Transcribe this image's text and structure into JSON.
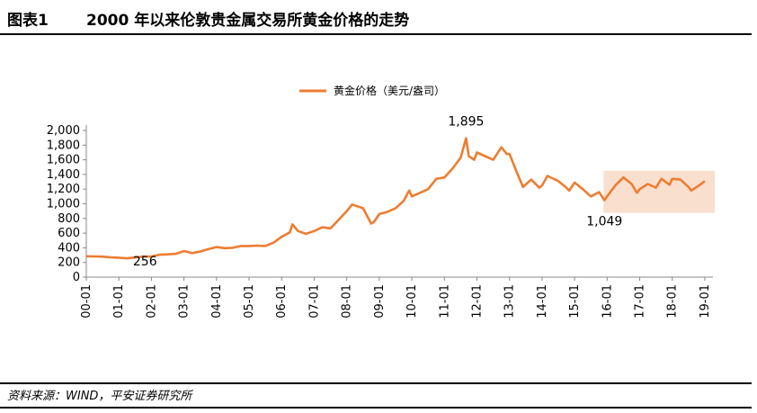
{
  "header": {
    "figure_label": "图表1",
    "title": "2000 年以来伦敦贵金属交易所黄金价格的走势"
  },
  "source": "资料来源：WIND，平安证券研究所",
  "chart_data": {
    "type": "line",
    "title": "2000 年以来伦敦贵金属交易所黄金价格的走势",
    "series": [
      {
        "name": "黄金价格（美元/盎司）",
        "color": "#ED7D31",
        "points": [
          [
            "2000-01",
            285
          ],
          [
            "2000-04",
            282
          ],
          [
            "2000-07",
            280
          ],
          [
            "2000-10",
            270
          ],
          [
            "2001-01",
            265
          ],
          [
            "2001-04",
            256
          ],
          [
            "2001-07",
            268
          ],
          [
            "2001-10",
            280
          ],
          [
            "2002-01",
            282
          ],
          [
            "2002-04",
            305
          ],
          [
            "2002-07",
            310
          ],
          [
            "2002-10",
            318
          ],
          [
            "2003-01",
            356
          ],
          [
            "2003-04",
            328
          ],
          [
            "2003-07",
            350
          ],
          [
            "2003-10",
            382
          ],
          [
            "2004-01",
            410
          ],
          [
            "2004-04",
            395
          ],
          [
            "2004-07",
            400
          ],
          [
            "2004-10",
            425
          ],
          [
            "2005-01",
            424
          ],
          [
            "2005-04",
            430
          ],
          [
            "2005-07",
            425
          ],
          [
            "2005-10",
            470
          ],
          [
            "2006-01",
            550
          ],
          [
            "2006-04",
            610
          ],
          [
            "2006-05",
            720
          ],
          [
            "2006-07",
            630
          ],
          [
            "2006-10",
            590
          ],
          [
            "2007-01",
            630
          ],
          [
            "2007-04",
            680
          ],
          [
            "2007-07",
            665
          ],
          [
            "2007-10",
            780
          ],
          [
            "2008-01",
            900
          ],
          [
            "2008-03",
            990
          ],
          [
            "2008-07",
            940
          ],
          [
            "2008-10",
            730
          ],
          [
            "2008-11",
            750
          ],
          [
            "2009-01",
            860
          ],
          [
            "2009-04",
            890
          ],
          [
            "2009-07",
            940
          ],
          [
            "2009-10",
            1040
          ],
          [
            "2009-12",
            1180
          ],
          [
            "2010-01",
            1100
          ],
          [
            "2010-04",
            1150
          ],
          [
            "2010-07",
            1200
          ],
          [
            "2010-10",
            1340
          ],
          [
            "2011-01",
            1360
          ],
          [
            "2011-04",
            1480
          ],
          [
            "2011-07",
            1630
          ],
          [
            "2011-09",
            1895
          ],
          [
            "2011-10",
            1650
          ],
          [
            "2011-12",
            1600
          ],
          [
            "2012-01",
            1700
          ],
          [
            "2012-04",
            1650
          ],
          [
            "2012-07",
            1600
          ],
          [
            "2012-10",
            1770
          ],
          [
            "2012-12",
            1680
          ],
          [
            "2013-01",
            1680
          ],
          [
            "2013-04",
            1400
          ],
          [
            "2013-06",
            1230
          ],
          [
            "2013-09",
            1330
          ],
          [
            "2013-12",
            1220
          ],
          [
            "2014-01",
            1250
          ],
          [
            "2014-03",
            1380
          ],
          [
            "2014-07",
            1310
          ],
          [
            "2014-10",
            1220
          ],
          [
            "2014-11",
            1180
          ],
          [
            "2015-01",
            1290
          ],
          [
            "2015-04",
            1200
          ],
          [
            "2015-07",
            1100
          ],
          [
            "2015-10",
            1160
          ],
          [
            "2015-12",
            1049
          ],
          [
            "2016-01",
            1100
          ],
          [
            "2016-04",
            1250
          ],
          [
            "2016-07",
            1360
          ],
          [
            "2016-10",
            1270
          ],
          [
            "2016-12",
            1150
          ],
          [
            "2017-01",
            1200
          ],
          [
            "2017-04",
            1270
          ],
          [
            "2017-07",
            1220
          ],
          [
            "2017-09",
            1340
          ],
          [
            "2017-12",
            1260
          ],
          [
            "2018-01",
            1340
          ],
          [
            "2018-04",
            1330
          ],
          [
            "2018-07",
            1230
          ],
          [
            "2018-08",
            1180
          ],
          [
            "2018-10",
            1230
          ],
          [
            "2018-12",
            1280
          ],
          [
            "2019-01",
            1310
          ]
        ]
      }
    ],
    "x_tick_labels": [
      "00-01",
      "01-01",
      "02-01",
      "03-01",
      "04-01",
      "05-01",
      "06-01",
      "07-01",
      "08-01",
      "09-01",
      "10-01",
      "11-01",
      "12-01",
      "13-01",
      "14-01",
      "15-01",
      "16-01",
      "17-01",
      "18-01",
      "19-01"
    ],
    "y_tick_labels": [
      "0",
      "200",
      "400",
      "600",
      "800",
      "1,000",
      "1,200",
      "1,400",
      "1,600",
      "1,800",
      "2,000"
    ],
    "ylim": [
      0,
      2000
    ],
    "xlim": [
      "2000-01",
      "2019-04"
    ],
    "legend": {
      "position": "top-center",
      "label": "黄金价格（美元/盎司）"
    },
    "annotations": [
      {
        "text": "1,895",
        "x": "2011-09",
        "y": 1895
      },
      {
        "text": "1,049",
        "x": "2015-12",
        "y": 1049
      },
      {
        "text": "256",
        "x": "2001-04",
        "y": 256
      }
    ],
    "highlight_region": {
      "x_start": "2016-01",
      "x_end": "2019-04",
      "y_start": 1049,
      "y_end": 1450,
      "color": "#F8D9C6"
    },
    "grid": false
  }
}
